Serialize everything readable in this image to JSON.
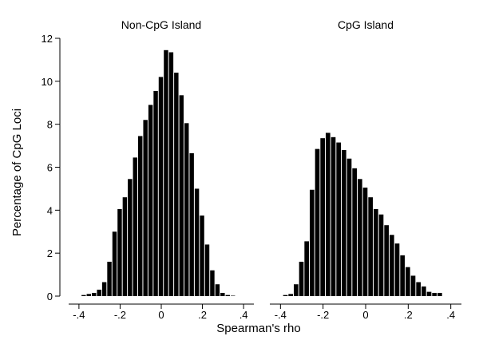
{
  "chart_data": {
    "type": "bar",
    "ylabel": "Percentage of CpG Loci",
    "xlabel": "Spearman's rho",
    "ylim": [
      0,
      12
    ],
    "xlim": [
      -0.45,
      0.45
    ],
    "y_ticks": [
      0,
      2,
      4,
      6,
      8,
      10,
      12
    ],
    "x_ticks": [
      -0.4,
      -0.2,
      0,
      0.2,
      0.4
    ],
    "x_tick_labels": [
      "-.4",
      "-.2",
      "0",
      ".2",
      ".4"
    ],
    "grid": false,
    "bar_color": "#000000",
    "panels": [
      {
        "title": "Non-CpG Island",
        "bin_centers": [
          -0.375,
          -0.35,
          -0.325,
          -0.3,
          -0.275,
          -0.25,
          -0.225,
          -0.2,
          -0.175,
          -0.15,
          -0.125,
          -0.1,
          -0.075,
          -0.05,
          -0.025,
          0.0,
          0.025,
          0.05,
          0.075,
          0.1,
          0.125,
          0.15,
          0.175,
          0.2,
          0.225,
          0.25,
          0.275,
          0.3,
          0.325,
          0.35
        ],
        "values": [
          0.05,
          0.1,
          0.15,
          0.3,
          0.65,
          1.6,
          3.0,
          4.05,
          4.6,
          5.45,
          6.45,
          7.45,
          8.2,
          8.9,
          9.55,
          10.2,
          11.45,
          11.35,
          10.4,
          9.35,
          8.05,
          6.65,
          5.0,
          3.75,
          2.4,
          1.2,
          0.55,
          0.15,
          0.05,
          0.02
        ]
      },
      {
        "title": "CpG Island",
        "bin_centers": [
          -0.375,
          -0.35,
          -0.325,
          -0.3,
          -0.275,
          -0.25,
          -0.225,
          -0.2,
          -0.175,
          -0.15,
          -0.125,
          -0.1,
          -0.075,
          -0.05,
          -0.025,
          0.0,
          0.025,
          0.05,
          0.075,
          0.1,
          0.125,
          0.15,
          0.175,
          0.2,
          0.225,
          0.25,
          0.275,
          0.3,
          0.325,
          0.35
        ],
        "values": [
          0.05,
          0.1,
          0.55,
          1.6,
          2.55,
          4.95,
          6.85,
          7.35,
          7.6,
          7.4,
          7.15,
          6.8,
          6.4,
          5.95,
          5.45,
          5.05,
          4.6,
          4.05,
          3.8,
          3.3,
          2.85,
          2.45,
          1.9,
          1.35,
          0.95,
          0.65,
          0.45,
          0.2,
          0.15,
          0.15
        ]
      }
    ]
  }
}
